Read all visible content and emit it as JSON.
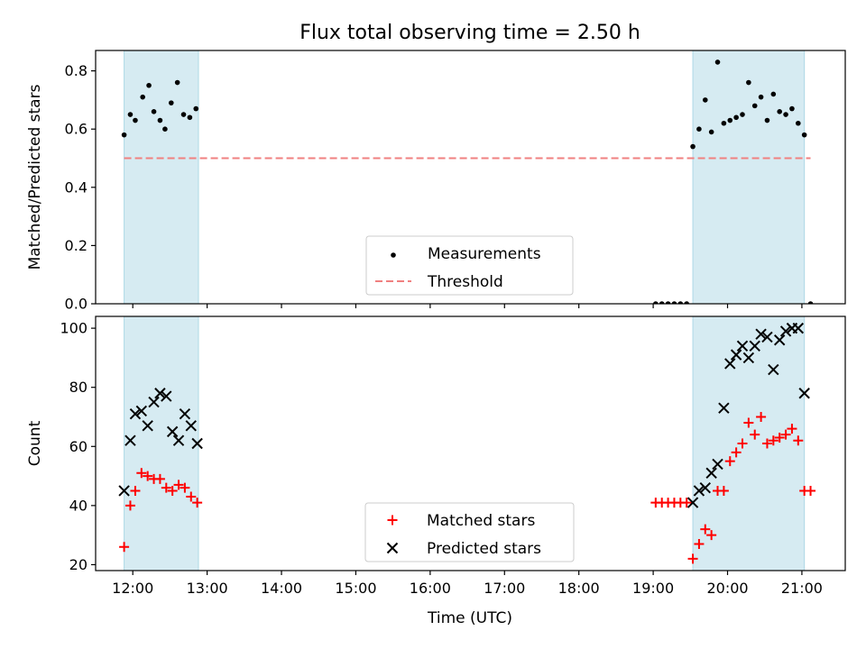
{
  "chart_data": {
    "type": "scatter",
    "title": "Flux total observing time = 2.50 h",
    "xlabel": "Time (UTC)",
    "x_ticks": [
      "12:00",
      "13:00",
      "14:00",
      "15:00",
      "16:00",
      "17:00",
      "18:00",
      "19:00",
      "20:00",
      "21:00"
    ],
    "x_range": [
      "11:30",
      "21:35"
    ],
    "observing_windows": [
      {
        "start": "11:53",
        "end": "12:53"
      },
      {
        "start": "19:32",
        "end": "21:02"
      }
    ],
    "colors": {
      "window_fill": "#add8e6",
      "measurement": "#000000",
      "threshold": "#f08080",
      "matched": "#ff0000",
      "predicted": "#000000"
    },
    "panels": [
      {
        "ylabel": "Matched/Predicted stars",
        "ylim": [
          0,
          0.87
        ],
        "y_ticks": [
          "0.0",
          "0.2",
          "0.4",
          "0.6",
          "0.8"
        ],
        "legend_position": "lower-center",
        "series": [
          {
            "name": "Measurements",
            "marker": "dot",
            "points": [
              [
                "11:53",
                0.58
              ],
              [
                "11:58",
                0.65
              ],
              [
                "12:02",
                0.63
              ],
              [
                "12:08",
                0.71
              ],
              [
                "12:13",
                0.75
              ],
              [
                "12:17",
                0.66
              ],
              [
                "12:22",
                0.63
              ],
              [
                "12:26",
                0.6
              ],
              [
                "12:31",
                0.69
              ],
              [
                "12:36",
                0.76
              ],
              [
                "12:41",
                0.65
              ],
              [
                "12:46",
                0.64
              ],
              [
                "12:51",
                0.67
              ],
              [
                "19:02",
                0.0
              ],
              [
                "19:07",
                0.0
              ],
              [
                "19:12",
                0.0
              ],
              [
                "19:17",
                0.0
              ],
              [
                "19:22",
                0.0
              ],
              [
                "19:27",
                0.0
              ],
              [
                "19:32",
                0.54
              ],
              [
                "19:37",
                0.6
              ],
              [
                "19:42",
                0.7
              ],
              [
                "19:47",
                0.59
              ],
              [
                "19:52",
                0.83
              ],
              [
                "19:57",
                0.62
              ],
              [
                "20:02",
                0.63
              ],
              [
                "20:07",
                0.64
              ],
              [
                "20:12",
                0.65
              ],
              [
                "20:17",
                0.76
              ],
              [
                "20:22",
                0.68
              ],
              [
                "20:27",
                0.71
              ],
              [
                "20:32",
                0.63
              ],
              [
                "20:37",
                0.72
              ],
              [
                "20:42",
                0.66
              ],
              [
                "20:47",
                0.65
              ],
              [
                "20:52",
                0.67
              ],
              [
                "20:57",
                0.62
              ],
              [
                "21:02",
                0.58
              ],
              [
                "21:07",
                0.0
              ]
            ]
          },
          {
            "name": "Threshold",
            "marker": "dashed-line",
            "points": [
              [
                "11:53",
                0.5
              ],
              [
                "21:07",
                0.5
              ]
            ]
          }
        ]
      },
      {
        "ylabel": "Count",
        "ylim": [
          18,
          104
        ],
        "y_ticks": [
          "20",
          "40",
          "60",
          "80",
          "100"
        ],
        "legend_position": "lower-center",
        "series": [
          {
            "name": "Matched stars",
            "marker": "plus",
            "points": [
              [
                "11:53",
                26
              ],
              [
                "11:58",
                40
              ],
              [
                "12:02",
                45
              ],
              [
                "12:07",
                51
              ],
              [
                "12:12",
                50
              ],
              [
                "12:17",
                49
              ],
              [
                "12:22",
                49
              ],
              [
                "12:27",
                46
              ],
              [
                "12:32",
                45
              ],
              [
                "12:37",
                47
              ],
              [
                "12:42",
                46
              ],
              [
                "12:47",
                43
              ],
              [
                "12:52",
                41
              ],
              [
                "19:02",
                41
              ],
              [
                "19:07",
                41
              ],
              [
                "19:12",
                41
              ],
              [
                "19:17",
                41
              ],
              [
                "19:22",
                41
              ],
              [
                "19:27",
                41
              ],
              [
                "19:32",
                22
              ],
              [
                "19:37",
                27
              ],
              [
                "19:42",
                32
              ],
              [
                "19:47",
                30
              ],
              [
                "19:52",
                45
              ],
              [
                "19:57",
                45
              ],
              [
                "20:02",
                55
              ],
              [
                "20:07",
                58
              ],
              [
                "20:12",
                61
              ],
              [
                "20:17",
                68
              ],
              [
                "20:22",
                64
              ],
              [
                "20:27",
                70
              ],
              [
                "20:32",
                61
              ],
              [
                "20:37",
                62
              ],
              [
                "20:42",
                63
              ],
              [
                "20:47",
                64
              ],
              [
                "20:52",
                66
              ],
              [
                "20:57",
                62
              ],
              [
                "21:02",
                45
              ],
              [
                "21:07",
                45
              ]
            ]
          },
          {
            "name": "Predicted stars",
            "marker": "x",
            "points": [
              [
                "11:53",
                45
              ],
              [
                "11:58",
                62
              ],
              [
                "12:02",
                71
              ],
              [
                "12:07",
                72
              ],
              [
                "12:12",
                67
              ],
              [
                "12:17",
                75
              ],
              [
                "12:22",
                78
              ],
              [
                "12:27",
                77
              ],
              [
                "12:32",
                65
              ],
              [
                "12:37",
                62
              ],
              [
                "12:42",
                71
              ],
              [
                "12:47",
                67
              ],
              [
                "12:52",
                61
              ],
              [
                "19:32",
                41
              ],
              [
                "19:37",
                45
              ],
              [
                "19:42",
                46
              ],
              [
                "19:47",
                51
              ],
              [
                "19:52",
                54
              ],
              [
                "19:57",
                73
              ],
              [
                "20:02",
                88
              ],
              [
                "20:07",
                91
              ],
              [
                "20:12",
                94
              ],
              [
                "20:17",
                90
              ],
              [
                "20:22",
                94
              ],
              [
                "20:27",
                98
              ],
              [
                "20:32",
                97
              ],
              [
                "20:37",
                86
              ],
              [
                "20:42",
                96
              ],
              [
                "20:47",
                99
              ],
              [
                "20:52",
                100
              ],
              [
                "20:57",
                100
              ],
              [
                "21:02",
                78
              ]
            ]
          }
        ]
      }
    ]
  }
}
